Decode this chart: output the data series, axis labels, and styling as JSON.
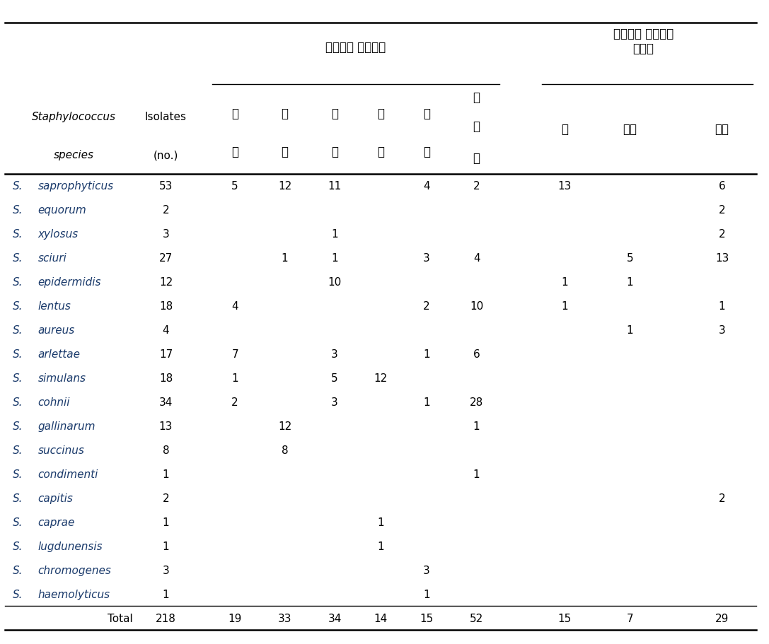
{
  "title_left": "미세먼지 포집지역",
  "title_right": "미세먼지 포집지역\n농산물",
  "col_headers_left": [
    "익\n산",
    "김\n제",
    "부\n안",
    "완\n주",
    "보\n령",
    "양\n계\n장"
  ],
  "col_headers_right": [
    "밀",
    "보리",
    "고추"
  ],
  "species": [
    "S. saprophyticus",
    "S. equorum",
    "S. xylosus",
    "S. sciuri",
    "S. epidermidis",
    "S. lentus",
    "S. aureus",
    "S. arlettae",
    "S. simulans",
    "S. cohnii",
    "S. gallinarum",
    "S. succinus",
    "S. condimenti",
    "S. capitis",
    "S. caprae",
    "S. lugdunensis",
    "S. chromogenes",
    "S. haemolyticus",
    "Total"
  ],
  "isolates": [
    "53",
    "2",
    "3",
    "27",
    "12",
    "18",
    "4",
    "17",
    "18",
    "34",
    "13",
    "8",
    "1",
    "2",
    "1",
    "1",
    "3",
    "1",
    "218"
  ],
  "data": [
    [
      "5",
      "12",
      "11",
      "",
      "4",
      "2",
      "13",
      "",
      "6"
    ],
    [
      "",
      "",
      "",
      "",
      "",
      "",
      "",
      "",
      "2"
    ],
    [
      "",
      "",
      "1",
      "",
      "",
      "",
      "",
      "",
      "2"
    ],
    [
      "",
      "1",
      "1",
      "",
      "3",
      "4",
      "",
      "5",
      "13"
    ],
    [
      "",
      "",
      "10",
      "",
      "",
      "",
      "1",
      "1",
      ""
    ],
    [
      "4",
      "",
      "",
      "",
      "2",
      "10",
      "1",
      "",
      "1"
    ],
    [
      "",
      "",
      "",
      "",
      "",
      "",
      "",
      "1",
      "3"
    ],
    [
      "7",
      "",
      "3",
      "",
      "1",
      "6",
      "",
      "",
      ""
    ],
    [
      "1",
      "",
      "5",
      "12",
      "",
      "",
      "",
      "",
      ""
    ],
    [
      "2",
      "",
      "3",
      "",
      "1",
      "28",
      "",
      "",
      ""
    ],
    [
      "",
      "12",
      "",
      "",
      "",
      "1",
      "",
      "",
      ""
    ],
    [
      "",
      "8",
      "",
      "",
      "",
      "",
      "",
      "",
      ""
    ],
    [
      "",
      "",
      "",
      "",
      "",
      "1",
      "",
      "",
      ""
    ],
    [
      "",
      "",
      "",
      "",
      "",
      "",
      "",
      "",
      "2"
    ],
    [
      "",
      "",
      "",
      "1",
      "",
      "",
      "",
      "",
      ""
    ],
    [
      "",
      "",
      "",
      "1",
      "",
      "",
      "",
      "",
      ""
    ],
    [
      "",
      "",
      "",
      "",
      "3",
      "",
      "",
      "",
      ""
    ],
    [
      "",
      "",
      "",
      "",
      "1",
      "",
      "",
      "",
      ""
    ],
    [
      "19",
      "33",
      "34",
      "14",
      "15",
      "52",
      "15",
      "7",
      "29"
    ]
  ],
  "bg_color": "#ffffff",
  "line_color": "#000000",
  "italic_color": "#1a3a6b",
  "normal_color": "#000000",
  "figsize": [
    10.87,
    9.12
  ],
  "dpi": 100
}
